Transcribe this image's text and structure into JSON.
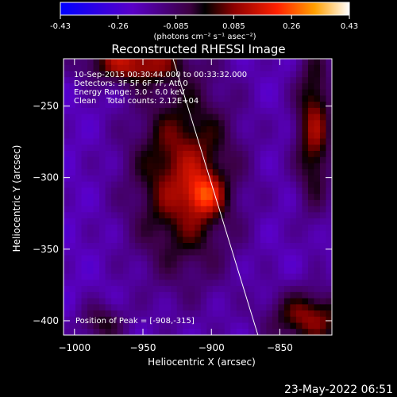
{
  "chart_data": {
    "type": "heatmap",
    "title": "Reconstructed RHESSI Image",
    "xlabel": "Heliocentric X (arcsec)",
    "ylabel": "Heliocentric Y (arcsec)",
    "xlim": [
      -1008,
      -812
    ],
    "ylim": [
      -410,
      -217
    ],
    "xticks": [
      -1000,
      -950,
      -900,
      -850
    ],
    "yticks": [
      -250,
      -300,
      -350,
      -400
    ],
    "colorbar": {
      "label": "(photons cm⁻² s⁻¹ asec⁻²)",
      "range": [
        -0.43,
        0.43
      ],
      "ticks": [
        "-0.43",
        "-0.26",
        "-0.085",
        "0.085",
        "0.26",
        "0.43"
      ]
    },
    "annotations": [
      "10-Sep-2015 00:30:44.000 to 00:33:32.000",
      "Detectors: 3F 5F 6F 7F, Att 0",
      "Energy Range: 3.0 - 6.0 keV",
      "Clean    Total counts: 2.12E+04"
    ],
    "peak_label": "Position of Peak = [-908,-315]",
    "peak": {
      "x": -908,
      "y": -315,
      "value": 0.43
    },
    "limb_line": [
      [
        -928,
        -217
      ],
      [
        -866,
        -410
      ]
    ],
    "sources": [
      {
        "x": -920,
        "y": -300,
        "sx": 28,
        "sy": 50,
        "amp": 0.3
      },
      {
        "x": -905,
        "y": -312,
        "sx": 9,
        "sy": 10,
        "amp": 0.2
      },
      {
        "x": -960,
        "y": -220,
        "sx": 25,
        "sy": 10,
        "amp": 0.3
      },
      {
        "x": -825,
        "y": -265,
        "sx": 10,
        "sy": 40,
        "amp": 0.28
      },
      {
        "x": -828,
        "y": -398,
        "sx": 22,
        "sy": 14,
        "amp": 0.28
      },
      {
        "x": -980,
        "y": -402,
        "sx": 12,
        "sy": 10,
        "amp": 0.18
      }
    ],
    "background": -0.2
  },
  "footer": {
    "timestamp": "23-May-2022 06:51"
  },
  "colors": {
    "background": "#000000",
    "text": "#ffffff",
    "limb": "#ffffff"
  }
}
